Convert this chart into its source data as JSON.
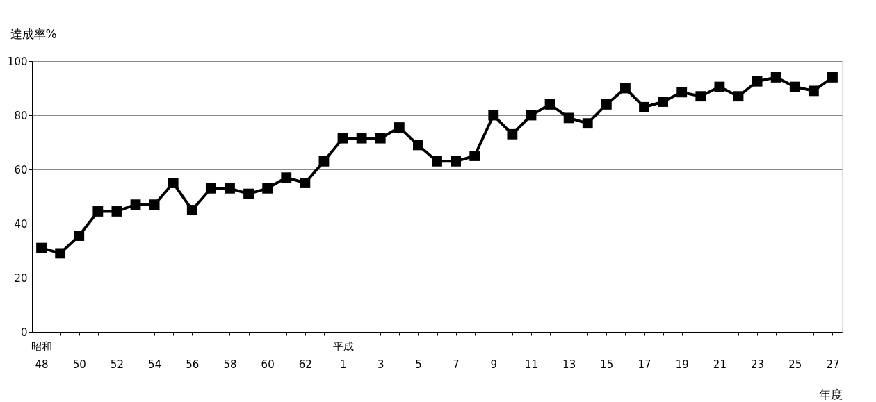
{
  "chart_data": {
    "type": "line",
    "ylabel": "達成率%",
    "xlabel": "年度",
    "categories": [
      "昭和\n48",
      null,
      "50",
      null,
      "52",
      null,
      "54",
      null,
      "56",
      null,
      "58",
      null,
      "60",
      null,
      "62",
      null,
      "平成\n1",
      null,
      "3",
      null,
      "5",
      null,
      "7",
      null,
      "9",
      null,
      "11",
      null,
      "13",
      null,
      "15",
      null,
      "17",
      null,
      "19",
      null,
      "21",
      null,
      "23",
      null,
      "25",
      null,
      "27"
    ],
    "series": [
      {
        "color": "#000000",
        "values": [
          31,
          29,
          35.5,
          44.5,
          44.5,
          47,
          47,
          55,
          45,
          53,
          53,
          51,
          53,
          57,
          55,
          63,
          71.5,
          71.5,
          71.5,
          75.5,
          69,
          63,
          63,
          65,
          80,
          73,
          80,
          84,
          79,
          77,
          84,
          90,
          83,
          85,
          88.5,
          87,
          90.5,
          87,
          92.5,
          94,
          90.5,
          89,
          94
        ]
      }
    ],
    "ylim": [
      0,
      100
    ],
    "yticks": [
      0,
      20,
      40,
      60,
      80,
      100
    ],
    "grid": "y",
    "legend": false,
    "marker": "square",
    "line_style": "solid"
  }
}
